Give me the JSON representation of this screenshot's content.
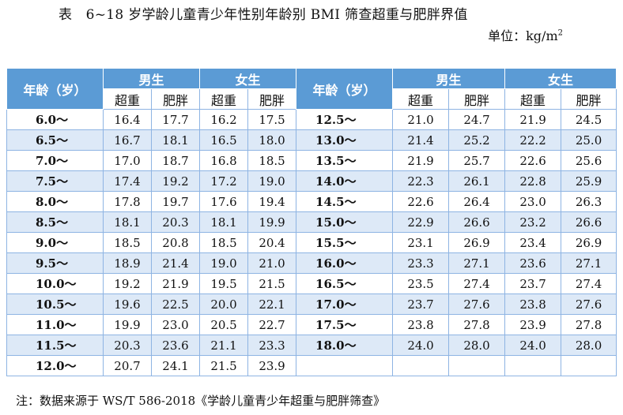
{
  "title": "表　6~18 岁学龄儿童青少年性别年龄别 BMI 筛查超重与肥胖界值",
  "unit_label": "单位：kg/m",
  "unit_sup": "2",
  "header": {
    "age": "年龄（岁）",
    "male": "男生",
    "female": "女生",
    "overweight": "超重",
    "obese": "肥胖"
  },
  "left_rows": [
    {
      "age": "6.0～",
      "m_ow": "16.4",
      "m_ob": "17.7",
      "f_ow": "16.2",
      "f_ob": "17.5"
    },
    {
      "age": "6.5～",
      "m_ow": "16.7",
      "m_ob": "18.1",
      "f_ow": "16.5",
      "f_ob": "18.0"
    },
    {
      "age": "7.0～",
      "m_ow": "17.0",
      "m_ob": "18.7",
      "f_ow": "16.8",
      "f_ob": "18.5"
    },
    {
      "age": "7.5～",
      "m_ow": "17.4",
      "m_ob": "19.2",
      "f_ow": "17.2",
      "f_ob": "19.0"
    },
    {
      "age": "8.0～",
      "m_ow": "17.8",
      "m_ob": "19.7",
      "f_ow": "17.6",
      "f_ob": "19.4"
    },
    {
      "age": "8.5～",
      "m_ow": "18.1",
      "m_ob": "20.3",
      "f_ow": "18.1",
      "f_ob": "19.9"
    },
    {
      "age": "9.0～",
      "m_ow": "18.5",
      "m_ob": "20.8",
      "f_ow": "18.5",
      "f_ob": "20.4"
    },
    {
      "age": "9.5～",
      "m_ow": "18.9",
      "m_ob": "21.4",
      "f_ow": "19.0",
      "f_ob": "21.0"
    },
    {
      "age": "10.0～",
      "m_ow": "19.2",
      "m_ob": "21.9",
      "f_ow": "19.5",
      "f_ob": "21.5"
    },
    {
      "age": "10.5～",
      "m_ow": "19.6",
      "m_ob": "22.5",
      "f_ow": "20.0",
      "f_ob": "22.1"
    },
    {
      "age": "11.0～",
      "m_ow": "19.9",
      "m_ob": "23.0",
      "f_ow": "20.5",
      "f_ob": "22.7"
    },
    {
      "age": "11.5～",
      "m_ow": "20.3",
      "m_ob": "23.6",
      "f_ow": "21.1",
      "f_ob": "23.3"
    },
    {
      "age": "12.0～",
      "m_ow": "20.7",
      "m_ob": "24.1",
      "f_ow": "21.5",
      "f_ob": "23.9"
    }
  ],
  "right_rows": [
    {
      "age": "12.5～",
      "m_ow": "21.0",
      "m_ob": "24.7",
      "f_ow": "21.9",
      "f_ob": "24.5"
    },
    {
      "age": "13.0～",
      "m_ow": "21.4",
      "m_ob": "25.2",
      "f_ow": "22.2",
      "f_ob": "25.0"
    },
    {
      "age": "13.5～",
      "m_ow": "21.9",
      "m_ob": "25.7",
      "f_ow": "22.6",
      "f_ob": "25.6"
    },
    {
      "age": "14.0～",
      "m_ow": "22.3",
      "m_ob": "26.1",
      "f_ow": "22.8",
      "f_ob": "25.9"
    },
    {
      "age": "14.5～",
      "m_ow": "22.6",
      "m_ob": "26.4",
      "f_ow": "23.0",
      "f_ob": "26.3"
    },
    {
      "age": "15.0～",
      "m_ow": "22.9",
      "m_ob": "26.6",
      "f_ow": "23.2",
      "f_ob": "26.6"
    },
    {
      "age": "15.5～",
      "m_ow": "23.1",
      "m_ob": "26.9",
      "f_ow": "23.4",
      "f_ob": "26.9"
    },
    {
      "age": "16.0～",
      "m_ow": "23.3",
      "m_ob": "27.1",
      "f_ow": "23.6",
      "f_ob": "27.1"
    },
    {
      "age": "16.5～",
      "m_ow": "23.5",
      "m_ob": "27.4",
      "f_ow": "23.7",
      "f_ob": "27.4"
    },
    {
      "age": "17.0～",
      "m_ow": "23.7",
      "m_ob": "27.6",
      "f_ow": "23.8",
      "f_ob": "27.6"
    },
    {
      "age": "17.5～",
      "m_ow": "23.8",
      "m_ob": "27.8",
      "f_ow": "23.9",
      "f_ob": "27.8"
    },
    {
      "age": "18.0～",
      "m_ow": "24.0",
      "m_ob": "28.0",
      "f_ow": "24.0",
      "f_ob": "28.0"
    }
  ],
  "note": "注：数据来源于 WS/T 586-2018《学龄儿童青少年超重与肥胖筛查》",
  "colors": {
    "header": "#5b9bd5",
    "stripe": "#dde9f7",
    "border": "#8eb4e3"
  }
}
